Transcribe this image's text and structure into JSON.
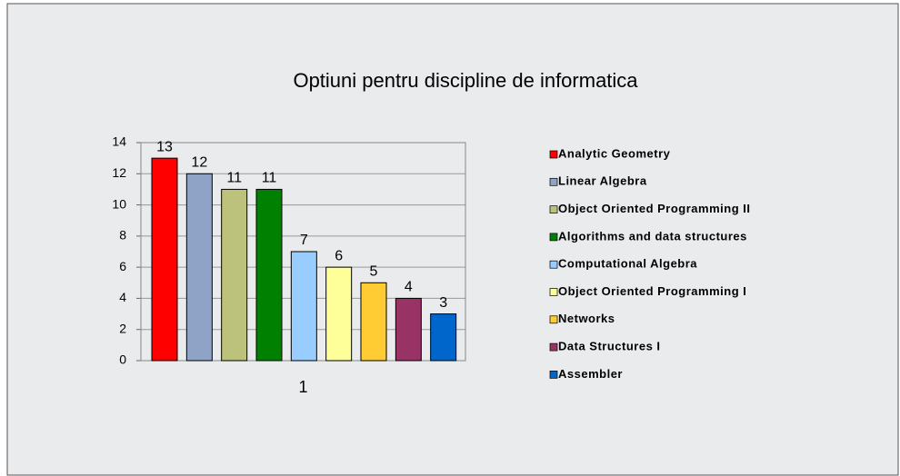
{
  "chart_data": {
    "type": "bar",
    "title": "Optiuni pentru discipline de informatica",
    "categories": [
      "1"
    ],
    "series": [
      {
        "name": "Analytic Geometry",
        "color": "#ff0000",
        "values": [
          13
        ]
      },
      {
        "name": "Linear Algebra",
        "color": "#8fa3c6",
        "values": [
          12
        ]
      },
      {
        "name": "Object Oriented Programming II",
        "color": "#bcc27c",
        "values": [
          11
        ]
      },
      {
        "name": "Algorithms and data structures",
        "color": "#008000",
        "values": [
          11
        ]
      },
      {
        "name": "Computational Algebra",
        "color": "#99ccff",
        "values": [
          7
        ]
      },
      {
        "name": "Object Oriented Programming I",
        "color": "#ffff99",
        "values": [
          6
        ]
      },
      {
        "name": "Networks",
        "color": "#ffcc33",
        "values": [
          5
        ]
      },
      {
        "name": "Data Structures I",
        "color": "#993366",
        "values": [
          4
        ]
      },
      {
        "name": "Assembler",
        "color": "#0066cc",
        "values": [
          3
        ]
      }
    ],
    "ylim": [
      0,
      14
    ],
    "yticks": [
      0,
      2,
      4,
      6,
      8,
      10,
      12,
      14
    ],
    "grid": true,
    "legend": "right"
  }
}
